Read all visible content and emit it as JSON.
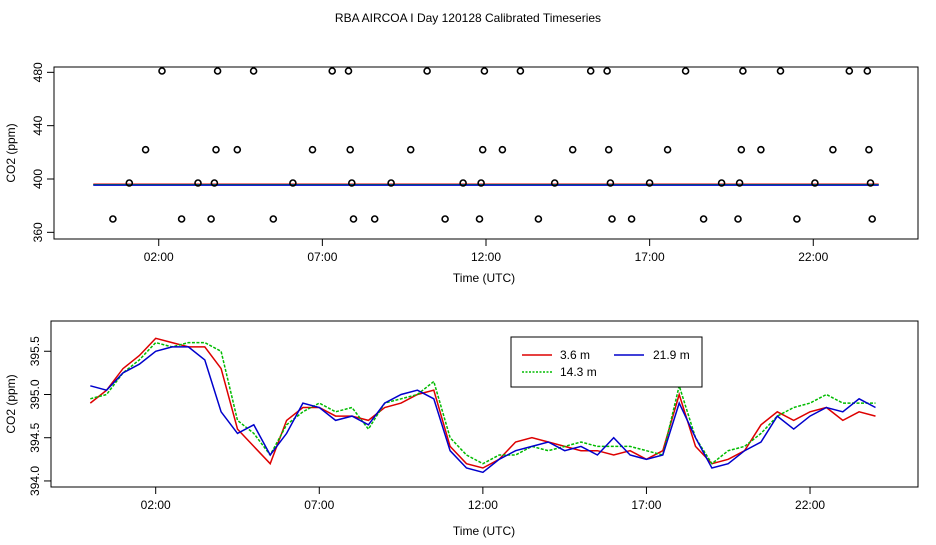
{
  "title": "RBA AIRCOA I  Day 120128  Calibrated Timeseries",
  "colors": {
    "h3_6": "#dd0000",
    "h14_3": "#00bb00",
    "h21_9": "#0000cc",
    "frame": "#000000"
  },
  "chart_data": [
    {
      "type": "scatter",
      "xlabel": "Time (UTC)",
      "ylabel": "CO2 (ppm)",
      "xlim": [
        -1.2,
        25.2
      ],
      "ylim": [
        355,
        484
      ],
      "xticks": [
        2,
        7,
        12,
        17,
        22
      ],
      "xtick_labels": [
        "02:00",
        "07:00",
        "12:00",
        "17:00",
        "22:00"
      ],
      "yticks": [
        360,
        400,
        440,
        480
      ],
      "ytick_labels": [
        "360",
        "400",
        "440",
        "480"
      ],
      "reference_points": [
        {
          "x": 0.6,
          "y": 370
        },
        {
          "x": 1.1,
          "y": 397
        },
        {
          "x": 1.6,
          "y": 422
        },
        {
          "x": 2.1,
          "y": 481
        },
        {
          "x": 2.7,
          "y": 370
        },
        {
          "x": 3.2,
          "y": 397
        },
        {
          "x": 3.6,
          "y": 370
        },
        {
          "x": 3.7,
          "y": 397
        },
        {
          "x": 3.75,
          "y": 422
        },
        {
          "x": 3.8,
          "y": 481
        },
        {
          "x": 4.4,
          "y": 422
        },
        {
          "x": 4.9,
          "y": 481
        },
        {
          "x": 5.5,
          "y": 370
        },
        {
          "x": 6.1,
          "y": 397
        },
        {
          "x": 6.7,
          "y": 422
        },
        {
          "x": 7.3,
          "y": 481
        },
        {
          "x": 7.8,
          "y": 481
        },
        {
          "x": 7.85,
          "y": 422
        },
        {
          "x": 7.9,
          "y": 397
        },
        {
          "x": 7.95,
          "y": 370
        },
        {
          "x": 8.6,
          "y": 370
        },
        {
          "x": 9.1,
          "y": 397
        },
        {
          "x": 9.7,
          "y": 422
        },
        {
          "x": 10.2,
          "y": 481
        },
        {
          "x": 10.75,
          "y": 370
        },
        {
          "x": 11.3,
          "y": 397
        },
        {
          "x": 11.8,
          "y": 370
        },
        {
          "x": 11.85,
          "y": 397
        },
        {
          "x": 11.9,
          "y": 422
        },
        {
          "x": 11.95,
          "y": 481
        },
        {
          "x": 12.5,
          "y": 422
        },
        {
          "x": 13.05,
          "y": 481
        },
        {
          "x": 13.6,
          "y": 370
        },
        {
          "x": 14.1,
          "y": 397
        },
        {
          "x": 14.65,
          "y": 422
        },
        {
          "x": 15.2,
          "y": 481
        },
        {
          "x": 15.7,
          "y": 481
        },
        {
          "x": 15.75,
          "y": 422
        },
        {
          "x": 15.8,
          "y": 397
        },
        {
          "x": 15.85,
          "y": 370
        },
        {
          "x": 16.45,
          "y": 370
        },
        {
          "x": 17.0,
          "y": 397
        },
        {
          "x": 17.55,
          "y": 422
        },
        {
          "x": 18.1,
          "y": 481
        },
        {
          "x": 18.65,
          "y": 370
        },
        {
          "x": 19.2,
          "y": 397
        },
        {
          "x": 19.7,
          "y": 370
        },
        {
          "x": 19.75,
          "y": 397
        },
        {
          "x": 19.8,
          "y": 422
        },
        {
          "x": 19.85,
          "y": 481
        },
        {
          "x": 20.4,
          "y": 422
        },
        {
          "x": 21.0,
          "y": 481
        },
        {
          "x": 21.5,
          "y": 370
        },
        {
          "x": 22.05,
          "y": 397
        },
        {
          "x": 22.6,
          "y": 422
        },
        {
          "x": 23.1,
          "y": 481
        },
        {
          "x": 23.65,
          "y": 481
        },
        {
          "x": 23.7,
          "y": 422
        },
        {
          "x": 23.75,
          "y": 397
        },
        {
          "x": 23.8,
          "y": 370
        }
      ],
      "series": [
        {
          "name": "3.6 m",
          "color": "#dd0000",
          "x": [
            0,
            24
          ],
          "y": [
            396.0,
            396.0
          ]
        },
        {
          "name": "14.3 m",
          "color": "#00bb00",
          "x": [
            0,
            24
          ],
          "y": [
            395.7,
            395.7
          ]
        },
        {
          "name": "21.9 m",
          "color": "#0000cc",
          "x": [
            0,
            24
          ],
          "y": [
            395.4,
            395.4
          ]
        }
      ]
    },
    {
      "type": "line",
      "xlabel": "Time (UTC)",
      "ylabel": "CO2 (ppm)",
      "xlim": [
        -1.2,
        25.3
      ],
      "ylim": [
        393.93,
        395.85
      ],
      "xticks": [
        2,
        7,
        12,
        17,
        22
      ],
      "xtick_labels": [
        "02:00",
        "07:00",
        "12:00",
        "17:00",
        "22:00"
      ],
      "yticks": [
        394.0,
        394.5,
        395.0,
        395.5
      ],
      "ytick_labels": [
        "394.0",
        "394.5",
        "395.0",
        "395.5"
      ],
      "legend": [
        "3.6 m",
        "14.3 m",
        "21.9 m"
      ],
      "legend_position": "top-right",
      "x": [
        0.0,
        0.5,
        1.0,
        1.5,
        2.0,
        2.5,
        3.0,
        3.5,
        4.0,
        4.5,
        5.0,
        5.5,
        6.0,
        6.5,
        7.0,
        7.5,
        8.0,
        8.5,
        9.0,
        9.5,
        10.0,
        10.5,
        11.0,
        11.5,
        12.0,
        12.5,
        13.0,
        13.5,
        14.0,
        14.5,
        15.0,
        15.5,
        16.0,
        16.5,
        17.0,
        17.5,
        18.0,
        18.5,
        19.0,
        19.5,
        20.0,
        20.5,
        21.0,
        21.5,
        22.0,
        22.5,
        23.0,
        23.5,
        24.0
      ],
      "series": [
        {
          "name": "3.6 m",
          "color": "#dd0000",
          "values": [
            394.9,
            395.05,
            395.3,
            395.45,
            395.65,
            395.6,
            395.55,
            395.55,
            395.3,
            394.6,
            394.4,
            394.2,
            394.7,
            394.85,
            394.85,
            394.75,
            394.75,
            394.7,
            394.85,
            394.9,
            395.0,
            395.05,
            394.4,
            394.2,
            394.15,
            394.25,
            394.45,
            394.5,
            394.45,
            394.4,
            394.35,
            394.35,
            394.3,
            394.35,
            394.25,
            394.35,
            395.0,
            394.4,
            394.2,
            394.25,
            394.35,
            394.65,
            394.8,
            394.7,
            394.8,
            394.85,
            394.7,
            394.8,
            394.75
          ]
        },
        {
          "name": "14.3 m",
          "color": "#00bb00",
          "values": [
            394.95,
            395.0,
            395.25,
            395.4,
            395.6,
            395.55,
            395.6,
            395.6,
            395.5,
            394.7,
            394.55,
            394.3,
            394.65,
            394.8,
            394.9,
            394.8,
            394.85,
            394.6,
            394.9,
            394.95,
            395.0,
            395.15,
            394.5,
            394.3,
            394.2,
            394.3,
            394.3,
            394.4,
            394.35,
            394.4,
            394.45,
            394.4,
            394.4,
            394.4,
            394.35,
            394.3,
            395.1,
            394.5,
            394.2,
            394.35,
            394.4,
            394.55,
            394.75,
            394.85,
            394.9,
            395.0,
            394.9,
            394.9,
            394.9
          ]
        },
        {
          "name": "21.9 m",
          "color": "#0000cc",
          "values": [
            395.1,
            395.05,
            395.25,
            395.35,
            395.5,
            395.55,
            395.55,
            395.4,
            394.8,
            394.55,
            394.65,
            394.3,
            394.55,
            394.9,
            394.85,
            394.7,
            394.75,
            394.65,
            394.9,
            395.0,
            395.05,
            394.95,
            394.35,
            394.15,
            394.1,
            394.25,
            394.35,
            394.4,
            394.45,
            394.35,
            394.4,
            394.3,
            394.5,
            394.3,
            394.25,
            394.3,
            394.9,
            394.5,
            394.15,
            394.2,
            394.35,
            394.45,
            394.75,
            394.6,
            394.75,
            394.85,
            394.8,
            394.95,
            394.85
          ]
        }
      ]
    }
  ]
}
